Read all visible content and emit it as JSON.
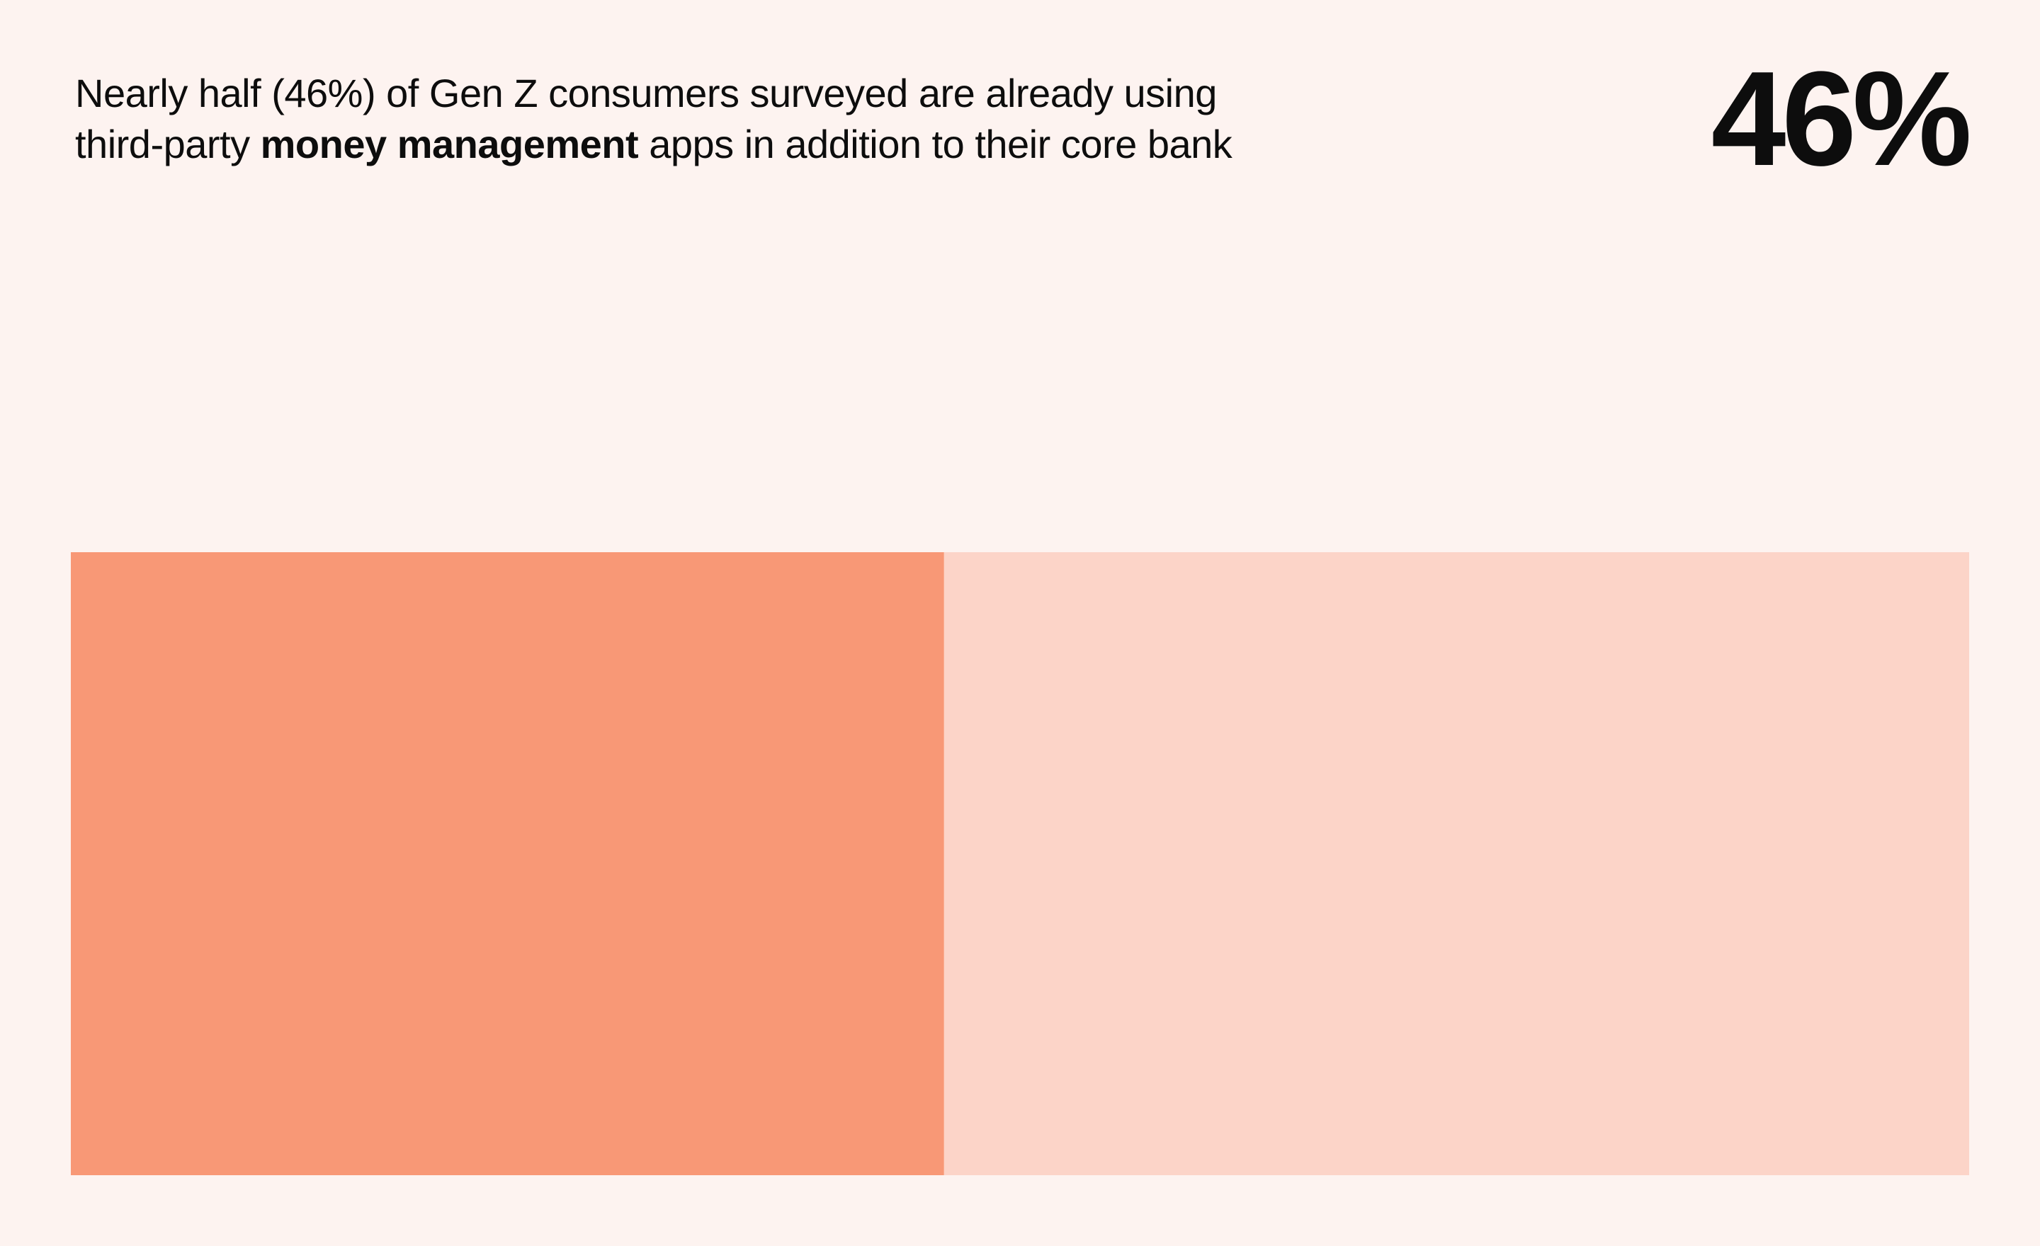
{
  "headline": {
    "line1": "Nearly half (46%) of Gen Z consumers surveyed are already using",
    "line2_prefix": "third-party ",
    "line2_bold": "money management",
    "line2_suffix": " apps in addition to their core bank"
  },
  "stat": {
    "value": "46%"
  },
  "colors": {
    "background": "#FDF3F0",
    "filled": "#F89876",
    "remainder": "#FCD4C8"
  },
  "chart_data": {
    "type": "bar",
    "orientation": "horizontal-stacked",
    "categories": [
      "Gen Z consumers surveyed"
    ],
    "series": [
      {
        "values": [
          46
        ],
        "color": "#F89876"
      },
      {
        "values": [
          54
        ],
        "color": "#FCD4C8"
      }
    ],
    "xlim": [
      0,
      100
    ],
    "title": "",
    "xlabel": "",
    "ylabel": "",
    "grid": false,
    "legend": "none"
  }
}
